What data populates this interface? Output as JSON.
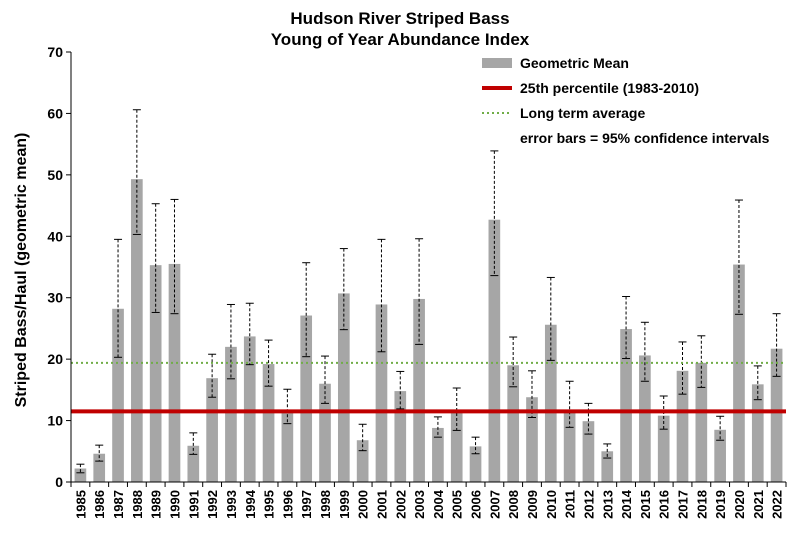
{
  "chart_data": {
    "type": "bar",
    "title": "Hudson River Striped Bass",
    "subtitle": "Young of Year Abundance Index",
    "xlabel": "",
    "ylabel": "Striped Bass/Haul (geometric mean)",
    "ylim": [
      0,
      70
    ],
    "yticks": [
      0,
      10,
      20,
      30,
      40,
      50,
      60,
      70
    ],
    "grid": false,
    "legend_position": "top-right",
    "categories": [
      "1985",
      "1986",
      "1987",
      "1988",
      "1989",
      "1990",
      "1991",
      "1992",
      "1993",
      "1994",
      "1995",
      "1996",
      "1997",
      "1998",
      "1999",
      "2000",
      "2001",
      "2002",
      "2003",
      "2004",
      "2005",
      "2006",
      "2007",
      "2008",
      "2009",
      "2010",
      "2011",
      "2012",
      "2013",
      "2014",
      "2015",
      "2016",
      "2017",
      "2018",
      "2019",
      "2020",
      "2021",
      "2022"
    ],
    "series": [
      {
        "name": "Geometric Mean",
        "color": "#a6a6a6",
        "values": [
          2.2,
          4.6,
          28.2,
          49.3,
          35.3,
          35.5,
          5.9,
          16.9,
          22.0,
          23.7,
          19.2,
          11.8,
          27.1,
          16.0,
          30.7,
          6.8,
          28.9,
          14.8,
          29.8,
          8.8,
          11.3,
          5.8,
          42.7,
          19.0,
          13.8,
          25.6,
          11.5,
          9.9,
          5.0,
          24.9,
          20.6,
          10.8,
          18.1,
          19.4,
          8.5,
          35.4,
          15.9,
          21.7
        ],
        "error_low": [
          1.5,
          3.4,
          20.3,
          40.3,
          27.6,
          27.4,
          4.5,
          13.8,
          16.8,
          19.1,
          15.6,
          9.5,
          20.4,
          12.8,
          24.8,
          5.1,
          21.2,
          11.9,
          22.4,
          7.3,
          8.4,
          4.6,
          33.6,
          15.5,
          10.5,
          19.8,
          8.9,
          7.8,
          3.9,
          20.1,
          16.4,
          8.6,
          14.3,
          15.4,
          6.8,
          27.3,
          13.4,
          17.2
        ],
        "error_high": [
          2.9,
          6.0,
          39.5,
          60.6,
          45.3,
          46.0,
          8.0,
          20.8,
          28.9,
          29.1,
          23.1,
          15.1,
          35.7,
          20.5,
          38.0,
          9.4,
          39.5,
          18.0,
          39.6,
          10.6,
          15.3,
          7.3,
          53.9,
          23.6,
          18.1,
          33.3,
          16.4,
          12.8,
          6.2,
          30.2,
          26.0,
          14.0,
          22.8,
          23.8,
          10.7,
          45.9,
          18.9,
          27.4
        ]
      }
    ],
    "reference_lines": [
      {
        "name": "25th percentile (1983-2010)",
        "value": 11.5,
        "color": "#c00000",
        "style": "solid"
      },
      {
        "name": "Long term average",
        "value": 19.4,
        "color": "#70ad47",
        "style": "dotted"
      }
    ],
    "legend": {
      "bar_label": "Geometric Mean",
      "percentile_label": "25th percentile (1983-2010)",
      "average_label": "Long term average",
      "error_note": "error bars  = 95% confidence intervals"
    }
  }
}
